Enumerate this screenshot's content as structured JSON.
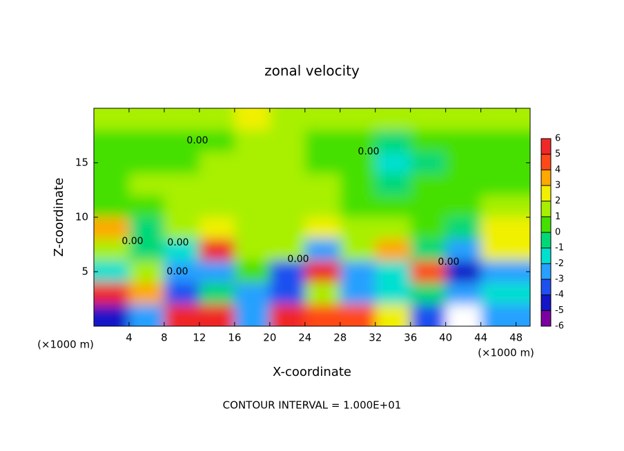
{
  "chart_data": {
    "type": "heatmap",
    "title": "zonal velocity",
    "x_label": "X-coordinate",
    "y_label": "Z-coordinate",
    "x_unit": "(×1000 m)",
    "y_unit": "(×1000 m)",
    "footer": "CONTOUR INTERVAL = 1.000E+01",
    "contour_labels": [
      "0.00",
      "0.00",
      "0.00",
      "0.00",
      "0.00",
      "0.00",
      "0.00"
    ],
    "xlim": [
      0,
      49.6
    ],
    "ylim": [
      0,
      20
    ],
    "xticks": [
      4,
      8,
      12,
      16,
      20,
      24,
      28,
      32,
      36,
      40,
      44,
      48
    ],
    "yticks": [
      5,
      10,
      15
    ],
    "x": [
      2,
      6,
      10,
      14,
      18,
      22,
      26,
      30,
      34,
      38,
      42,
      46
    ],
    "y": [
      19,
      17,
      15,
      13,
      11,
      9,
      7,
      5,
      3,
      1
    ],
    "z": [
      [
        1,
        1,
        1,
        1.5,
        2,
        1.5,
        1,
        1,
        1,
        1,
        1,
        1
      ],
      [
        0,
        0,
        0.5,
        0.5,
        1,
        1,
        0.5,
        0.5,
        -0.5,
        0.5,
        0.5,
        0.5
      ],
      [
        0.5,
        0.5,
        0.5,
        1,
        1,
        1,
        0.5,
        0.5,
        -1.5,
        -0.5,
        0.5,
        0.5
      ],
      [
        0.5,
        1,
        1,
        1,
        1,
        1.5,
        1,
        0.5,
        -1,
        0,
        0.5,
        0.5
      ],
      [
        0.5,
        0.5,
        1,
        1,
        1.5,
        1.5,
        1,
        0.5,
        0.5,
        0.5,
        0.5,
        1
      ],
      [
        3,
        -0.5,
        1,
        2,
        1.5,
        1.5,
        2.5,
        1.5,
        1,
        0,
        -1,
        2
      ],
      [
        1,
        -1,
        -2,
        5,
        1,
        1,
        -3,
        1,
        3,
        -1,
        -3,
        2
      ],
      [
        -2,
        1,
        -3,
        -3,
        0.5,
        -4,
        5,
        -3,
        -2,
        4,
        -5,
        -3
      ],
      [
        5,
        3,
        -4,
        -1,
        -3,
        -4,
        1,
        -3,
        -2,
        -1,
        -3,
        -2
      ],
      [
        -5,
        -3,
        5,
        5,
        -3,
        5,
        4,
        4,
        2,
        -4,
        6,
        -3
      ]
    ],
    "colorbar": {
      "levels": [
        -6,
        -5,
        -4,
        -3,
        -2,
        -1,
        0,
        1,
        2,
        3,
        4,
        5,
        6
      ],
      "colors": [
        "#7a00a0",
        "#1414c8",
        "#1e50f0",
        "#28a0ff",
        "#00e0d0",
        "#00d878",
        "#44e000",
        "#a8f000",
        "#f0f000",
        "#ffa800",
        "#ff4818",
        "#f02828"
      ]
    }
  }
}
